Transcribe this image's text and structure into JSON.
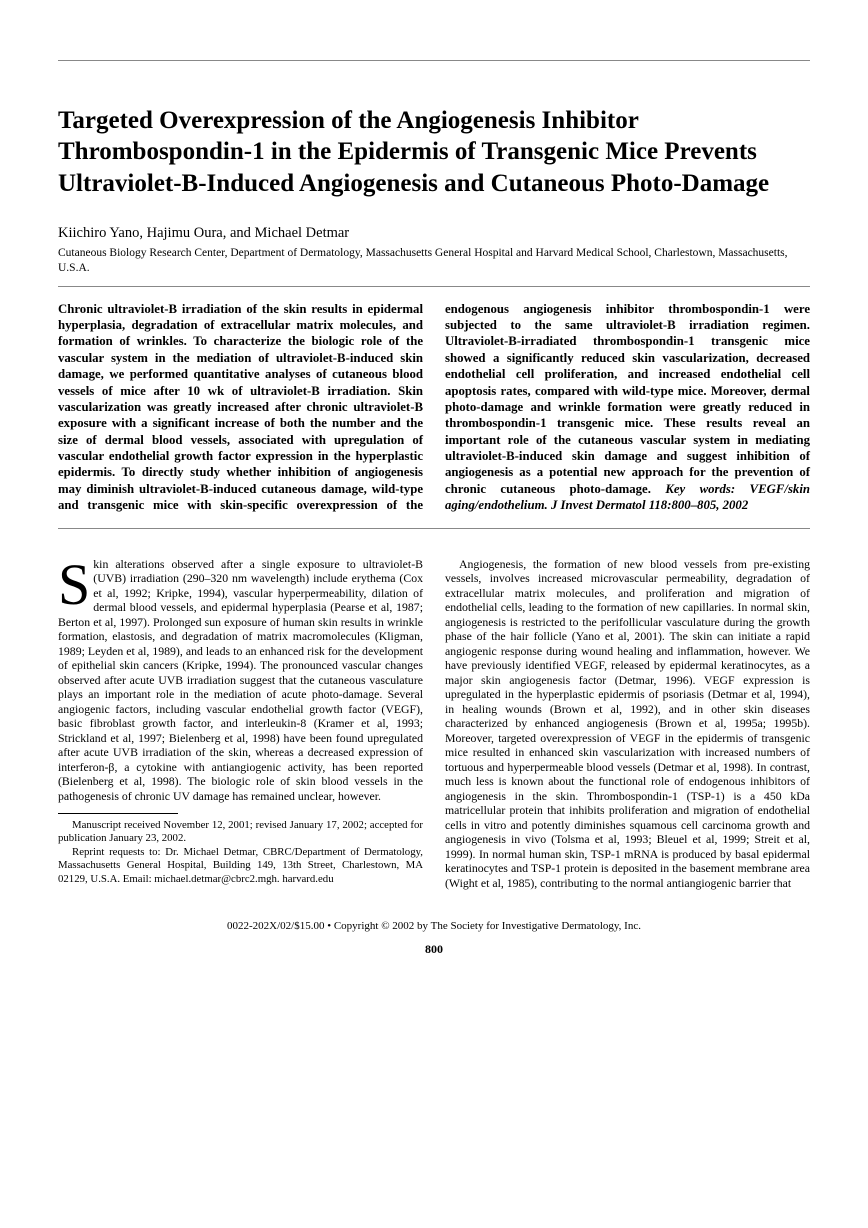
{
  "title": "Targeted Overexpression of the Angiogenesis Inhibitor Thrombospondin-1 in the Epidermis of Transgenic Mice Prevents Ultraviolet-B-Induced Angiogenesis and Cutaneous Photo-Damage",
  "authors": "Kiichiro Yano, Hajimu Oura, and Michael Detmar",
  "affiliation": "Cutaneous Biology Research Center, Department of Dermatology, Massachusetts General Hospital and Harvard Medical School, Charlestown, Massachusetts, U.S.A.",
  "abstract_part1": "Chronic ultraviolet-B irradiation of the skin results in epidermal hyperplasia, degradation of extracellular matrix molecules, and formation of wrinkles. To characterize the biologic role of the vascular system in the mediation of ultraviolet-B-induced skin damage, we performed quantitative analyses of cutaneous blood vessels of mice after 10 wk of ultraviolet-B irradiation. Skin vascularization was greatly increased after chronic ultraviolet-B exposure with a significant increase of both the number and the size of dermal blood vessels, associated with upregulation of vascular endothelial growth factor expression in the hyperplastic epidermis. To directly study whether inhibition of angiogenesis may diminish ultraviolet-B-induced cutaneous damage, wild-type and transgenic mice with skin-specific overexpression of the endogenous angiogenesis inhibitor thrombospondin-1 were subjected to the same ultraviolet-B irradiation regimen. Ultraviolet-B-irradiated thrombospondin-1 transgenic mice showed a significantly reduced skin vascularization, decreased endothelial cell proliferation, and increased endothelial cell apoptosis rates, compared with wild-type mice. Moreover, dermal photo-damage and wrinkle formation were greatly reduced in thrombospondin-1 transgenic mice. These results reveal an important role of the cutaneous vascular system in mediating ultraviolet-B-induced skin damage and suggest inhibition of angiogenesis as a potential new approach for the prevention of chronic cutaneous photo-damage. ",
  "abstract_keywords": "Key words: VEGF/skin aging/endothelium. J Invest Dermatol 118:800–805, 2002",
  "body_p1_first": "S",
  "body_p1_rest": "kin alterations observed after a single exposure to ultraviolet-B (UVB) irradiation (290–320 nm wavelength) include erythema (Cox et al, 1992; Kripke, 1994), vascular hyperpermeability, dilation of dermal blood vessels, and epidermal hyperplasia (Pearse et al, 1987; Berton et al, 1997). Prolonged sun exposure of human skin results in wrinkle formation, elastosis, and degradation of matrix macromolecules (Kligman, 1989; Leyden et al, 1989), and leads to an enhanced risk for the development of epithelial skin cancers (Kripke, 1994). The pronounced vascular changes observed after acute UVB irradiation suggest that the cutaneous vasculature plays an important role in the mediation of acute photo-damage. Several angiogenic factors, including vascular endothelial growth factor (VEGF), basic fibroblast growth factor, and interleukin-8 (Kramer et al, 1993; Strickland et al, 1997; Bielenberg et al, 1998) have been found upregulated after acute UVB irradiation of the skin, whereas a decreased expression of interferon-β, a cytokine with antiangiogenic activity, has been reported (Bielenberg et al, 1998). The biologic role of skin blood vessels in the pathogenesis of chronic UV damage has remained unclear, however.",
  "body_p2": "Angiogenesis, the formation of new blood vessels from pre-existing vessels, involves increased microvascular permeability, degradation of extracellular matrix molecules, and proliferation and migration of endothelial cells, leading to the formation of new capillaries. In normal skin, angiogenesis is restricted to the perifollicular vasculature during the growth phase of the hair follicle (Yano et al, 2001). The skin can initiate a rapid angiogenic response during wound healing and inflammation, however. We have previously identified VEGF, released by epidermal keratinocytes, as a major skin angiogenesis factor (Detmar, 1996). VEGF expression is upregulated in the hyperplastic epidermis of psoriasis (Detmar et al, 1994), in healing wounds (Brown et al, 1992), and in other skin diseases characterized by enhanced angiogenesis (Brown et al, 1995a; 1995b). Moreover, targeted overexpression of VEGF in the epidermis of transgenic mice resulted in enhanced skin vascularization with increased numbers of tortuous and hyperpermeable blood vessels (Detmar et al, 1998). In contrast, much less is known about the functional role of endogenous inhibitors of angiogenesis in the skin. Thrombospondin-1 (TSP-1) is a 450 kDa matricellular protein that inhibits proliferation and migration of endothelial cells in vitro and potently diminishes squamous cell carcinoma growth and angiogenesis in vivo (Tolsma et al, 1993; Bleuel et al, 1999; Streit et al, 1999). In normal human skin, TSP-1 mRNA is produced by basal epidermal keratinocytes and TSP-1 protein is deposited in the basement membrane area (Wight et al, 1985), contributing to the normal antiangiogenic barrier that",
  "footnote1": "Manuscript received November 12, 2001; revised January 17, 2002; accepted for publication January 23, 2002.",
  "footnote2": "Reprint requests to: Dr. Michael Detmar, CBRC/Department of Dermatology, Massachusetts General Hospital, Building 149, 13th Street, Charlestown, MA 02129, U.S.A. Email: michael.detmar@cbrc2.mgh. harvard.edu",
  "footer": "0022-202X/02/$15.00 • Copyright © 2002 by The Society for Investigative Dermatology, Inc.",
  "page_number": "800"
}
